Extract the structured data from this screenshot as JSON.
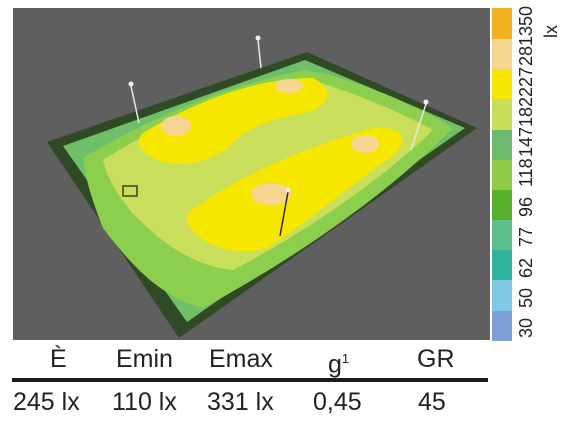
{
  "legend": {
    "unit": "lx",
    "labels": [
      "30",
      "50",
      "62",
      "77",
      "96",
      "118",
      "147",
      "182",
      "227",
      "281",
      "350"
    ],
    "colors": [
      "#7f9fd8",
      "#7fc9e6",
      "#2fb39a",
      "#5cbf8a",
      "#5aaf2c",
      "#8fcb4a",
      "#6db96d",
      "#c8de5a",
      "#f6e600",
      "#f5d58f",
      "#f2b020"
    ]
  },
  "summary": {
    "headers": [
      "È",
      "Emin",
      "Emax",
      "g",
      "GR"
    ],
    "g_superscript": "1",
    "values": [
      "245 lx",
      "110 lx",
      "331 lx",
      "0,45",
      "45"
    ]
  }
}
